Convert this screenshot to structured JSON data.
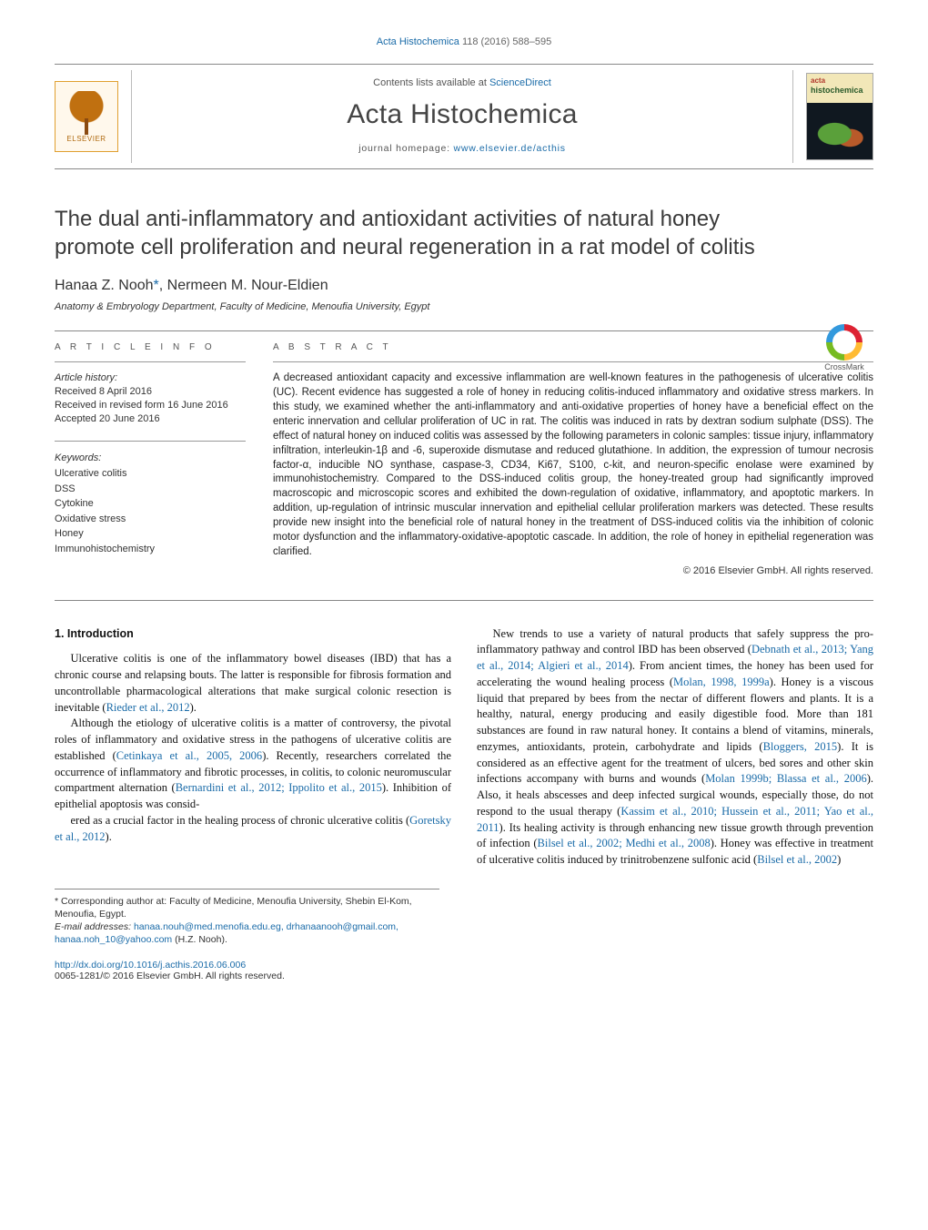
{
  "running_head": {
    "journal": "Acta Histochemica",
    "citation": "118 (2016) 588–595"
  },
  "masthead": {
    "publisher": "ELSEVIER",
    "contents_prefix": "Contents lists available at ",
    "contents_link": "ScienceDirect",
    "journal_title": "Acta Histochemica",
    "homepage_prefix": "journal homepage: ",
    "homepage_url": "www.elsevier.de/acthis",
    "cover_top": "acta",
    "cover_mid": "histochemica"
  },
  "crossmark_label": "CrossMark",
  "article": {
    "title": "The dual anti-inflammatory and antioxidant activities of natural honey promote cell proliferation and neural regeneration in a rat model of colitis",
    "authors_html": "Hanaa Z. Nooh<span class='corr'>*</span>, Nermeen M. Nour-Eldien",
    "affiliation": "Anatomy & Embryology Department, Faculty of Medicine, Menoufia University, Egypt"
  },
  "labels": {
    "article_info": "a r t i c l e   i n f o",
    "abstract": "a b s t r a c t",
    "keywords": "Keywords:",
    "history": "Article history:"
  },
  "history": {
    "received": "Received 8 April 2016",
    "revised": "Received in revised form 16 June 2016",
    "accepted": "Accepted 20 June 2016"
  },
  "keywords": [
    "Ulcerative colitis",
    "DSS",
    "Cytokine",
    "Oxidative stress",
    "Honey",
    "Immunohistochemistry"
  ],
  "abstract": "A decreased antioxidant capacity and excessive inflammation are well-known features in the pathogenesis of ulcerative colitis (UC). Recent evidence has suggested a role of honey in reducing colitis-induced inflammatory and oxidative stress markers. In this study, we examined whether the anti-inflammatory and anti-oxidative properties of honey have a beneficial effect on the enteric innervation and cellular proliferation of UC in rat. The colitis was induced in rats by dextran sodium sulphate (DSS). The effect of natural honey on induced colitis was assessed by the following parameters in colonic samples: tissue injury, inflammatory infiltration, interleukin-1β and -6, superoxide dismutase and reduced glutathione. In addition, the expression of tumour necrosis factor-α, inducible NO synthase, caspase-3, CD34, Ki67, S100, c-kit, and neuron-specific enolase were examined by immunohistochemistry. Compared to the DSS-induced colitis group, the honey-treated group had significantly improved macroscopic and microscopic scores and exhibited the down-regulation of oxidative, inflammatory, and apoptotic markers. In addition, up-regulation of intrinsic muscular innervation and epithelial cellular proliferation markers was detected. These results provide new insight into the beneficial role of natural honey in the treatment of DSS-induced colitis via the inhibition of colonic motor dysfunction and the inflammatory-oxidative-apoptotic cascade. In addition, the role of honey in epithelial regeneration was clarified.",
  "copyright": "© 2016 Elsevier GmbH. All rights reserved.",
  "body": {
    "heading1": "1. Introduction",
    "p1": "Ulcerative colitis is one of the inflammatory bowel diseases (IBD) that has a chronic course and relapsing bouts. The latter is responsible for fibrosis formation and uncontrollable pharmacological alterations that make surgical colonic resection is inevitable (<span class='cite'>Rieder et al., 2012</span>).",
    "p2": "Although the etiology of ulcerative colitis is a matter of controversy, the pivotal roles of inflammatory and oxidative stress in the pathogens of ulcerative colitis are established (<span class='cite'>Cetinkaya et al., 2005, 2006</span>). Recently, researchers correlated the occurrence of inflammatory and fibrotic processes, in colitis, to colonic neuromuscular compartment alternation (<span class='cite'>Bernardini et al., 2012; Ippolito et al., 2015</span>). Inhibition of epithelial apoptosis was consid-",
    "p3": "ered as a crucial factor in the healing process of chronic ulcerative colitis (<span class='cite'>Goretsky et al., 2012</span>).",
    "p4": "New trends to use a variety of natural products that safely suppress the pro-inflammatory pathway and control IBD has been observed (<span class='cite'>Debnath et al., 2013; Yang et al., 2014; Algieri et al., 2014</span>). From ancient times, the honey has been used for accelerating the wound healing process (<span class='cite'>Molan, 1998, 1999a</span>). Honey is a viscous liquid that prepared by bees from the nectar of different flowers and plants. It is a healthy, natural, energy producing and easily digestible food. More than 181 substances are found in raw natural honey. It contains a blend of vitamins, minerals, enzymes, antioxidants, protein, carbohydrate and lipids (<span class='cite'>Bloggers, 2015</span>). It is considered as an effective agent for the treatment of ulcers, bed sores and other skin infections accompany with burns and wounds (<span class='cite'>Molan 1999b; Blassa et al., 2006</span>). Also, it heals abscesses and deep infected surgical wounds, especially those, do not respond to the usual therapy (<span class='cite'>Kassim et al., 2010; Hussein et al., 2011; Yao et al., 2011</span>). Its healing activity is through enhancing new tissue growth through prevention of infection (<span class='cite'>Bilsel et al., 2002; Medhi et al., 2008</span>). Honey was effective in treatment of ulcerative colitis induced by trinitrobenzene sulfonic acid (<span class='cite'>Bilsel et al., 2002</span>)"
  },
  "footnotes": {
    "corr": "* Corresponding author at: Faculty of Medicine, Menoufia University, Shebin El-Kom, Menoufia, Egypt.",
    "emails_label": "E-mail addresses:",
    "emails": "hanaa.nouh@med.menofia.edu.eg, drhanaanooh@gmail.com, hanaa.noh_10@yahoo.com",
    "emails_suffix": " (H.Z. Nooh)."
  },
  "doi": {
    "url": "http://dx.doi.org/10.1016/j.acthis.2016.06.006",
    "line2": "0065-1281/© 2016 Elsevier GmbH. All rights reserved."
  },
  "colors": {
    "link": "#1a6ba8",
    "text": "#000000",
    "muted": "#555555",
    "rule": "#888888"
  }
}
